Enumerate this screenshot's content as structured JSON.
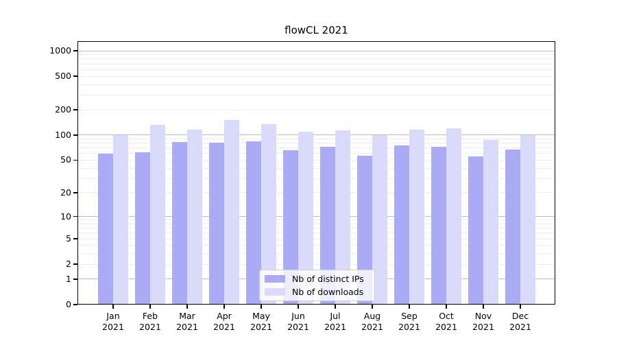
{
  "chart_data": {
    "type": "bar",
    "title": "flowCL 2021",
    "categories": [
      "Jan 2021",
      "Feb 2021",
      "Mar 2021",
      "Apr 2021",
      "May 2021",
      "Jun 2021",
      "Jul 2021",
      "Aug 2021",
      "Sep 2021",
      "Oct 2021",
      "Nov 2021",
      "Dec 2021"
    ],
    "series": [
      {
        "name": "Nb of distinct IPs",
        "color": "#aaaaf5",
        "values": [
          60,
          62,
          82,
          81,
          84,
          66,
          73,
          57,
          75,
          72,
          55,
          67
        ]
      },
      {
        "name": "Nb of downloads",
        "color": "#dadafa",
        "values": [
          100,
          133,
          117,
          150,
          136,
          110,
          113,
          100,
          115,
          121,
          87,
          100
        ]
      }
    ],
    "xlabel": "",
    "ylabel": "",
    "yscale": "pseudo-log",
    "ylim": [
      0,
      1300
    ],
    "y_tick_values": [
      0,
      1,
      2,
      5,
      10,
      20,
      50,
      100,
      200,
      500,
      1000
    ],
    "y_tick_labels": [
      "0",
      "1",
      "2",
      "5",
      "10",
      "20",
      "50",
      "100",
      "200",
      "500",
      "1000"
    ],
    "grid": "horizontal, major decades + minor log lines",
    "legend_position": "inside bottom-center",
    "colors": {
      "major_grid": "#bdbdbd",
      "minor_grid": "#ededed",
      "axis": "#000000"
    }
  }
}
